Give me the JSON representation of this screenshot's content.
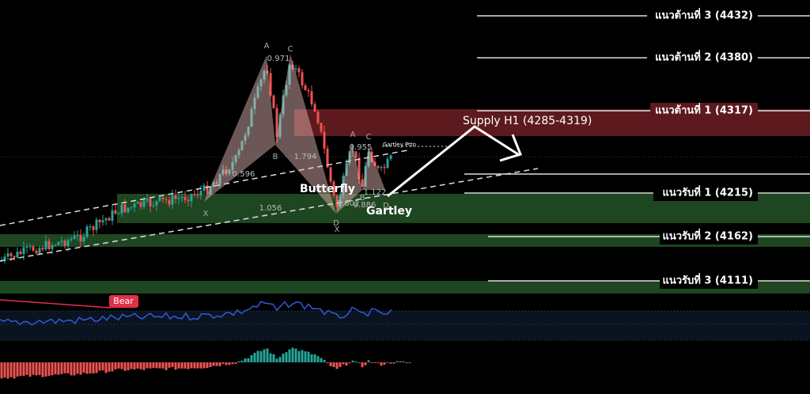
{
  "levels": {
    "resistance": [
      "แนวต้านที่ 3 (4432)",
      "แนวต้านที่ 2 (4380)",
      "แนวต้านที่ 1 (4317)"
    ],
    "support": [
      "แนวรับที่ 1 (4215)",
      "แนวรับที่ 2 (4162)",
      "แนวรับที่ 3 (4111)"
    ]
  },
  "zone_label": "Supply H1 (4285-4319)",
  "patterns": {
    "butterfly": {
      "name": "Butterfly",
      "points": [
        "X",
        "A",
        "B",
        "C",
        "D"
      ],
      "ratios": [
        "0.971",
        "0.596",
        "1.794",
        "1.056"
      ]
    },
    "gartley": {
      "name": "Gartley",
      "note": "Gartley Pttn",
      "points": [
        "X",
        "A",
        "B",
        "C",
        "D"
      ],
      "ratios": [
        "0.955",
        "0.602",
        "1.122",
        "0.886"
      ]
    }
  },
  "indicator": {
    "signal": "Bear"
  }
}
